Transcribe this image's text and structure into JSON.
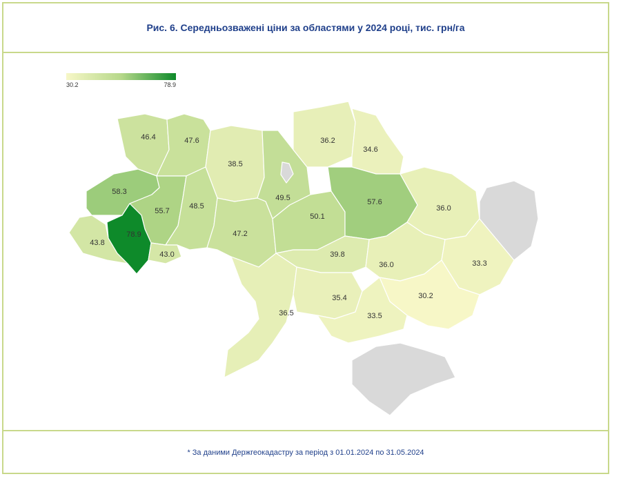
{
  "title": "Рис. 6. Середньозважені ціни за областями у 2024 році, тис. грн/га",
  "source_note": "* За даними Держгеокадастру за період з 01.01.2024 по 31.05.2024",
  "legend": {
    "min_label": "30.2",
    "max_label": "78.9"
  },
  "colors": {
    "border": "#c8d88a",
    "title": "#1f3f8a",
    "no_data": "#d9d9d9",
    "scale_low": "#f7f7c7",
    "scale_mid": "#b6d88a",
    "scale_high": "#0e8a2a"
  },
  "regions": [
    {
      "name": "volyn",
      "value": "46.4"
    },
    {
      "name": "rivne",
      "value": "47.6"
    },
    {
      "name": "zhytomyr",
      "value": "38.5"
    },
    {
      "name": "kyiv",
      "value": "49.5"
    },
    {
      "name": "chernihiv",
      "value": "36.2"
    },
    {
      "name": "sumy",
      "value": "34.6"
    },
    {
      "name": "lviv",
      "value": "58.3"
    },
    {
      "name": "ternopil",
      "value": "55.7"
    },
    {
      "name": "khmelnytskyi",
      "value": "48.5"
    },
    {
      "name": "vinnytsia",
      "value": "47.2"
    },
    {
      "name": "cherkasy",
      "value": "50.1"
    },
    {
      "name": "poltava",
      "value": "57.6"
    },
    {
      "name": "kharkiv",
      "value": "36.0"
    },
    {
      "name": "zakarpattia",
      "value": "43.8"
    },
    {
      "name": "ivano-frankivsk",
      "value": "78.9"
    },
    {
      "name": "chernivtsi",
      "value": "43.0"
    },
    {
      "name": "kirovohrad",
      "value": "39.8"
    },
    {
      "name": "dnipropetrovsk",
      "value": "36.0"
    },
    {
      "name": "donetsk",
      "value": "33.3"
    },
    {
      "name": "odesa",
      "value": "36.5"
    },
    {
      "name": "mykolaiv",
      "value": "35.4"
    },
    {
      "name": "zaporizhzhia",
      "value": "30.2"
    },
    {
      "name": "kherson",
      "value": "33.5"
    },
    {
      "name": "luhansk",
      "value": ""
    },
    {
      "name": "crimea",
      "value": ""
    },
    {
      "name": "kyiv-city",
      "value": ""
    }
  ]
}
